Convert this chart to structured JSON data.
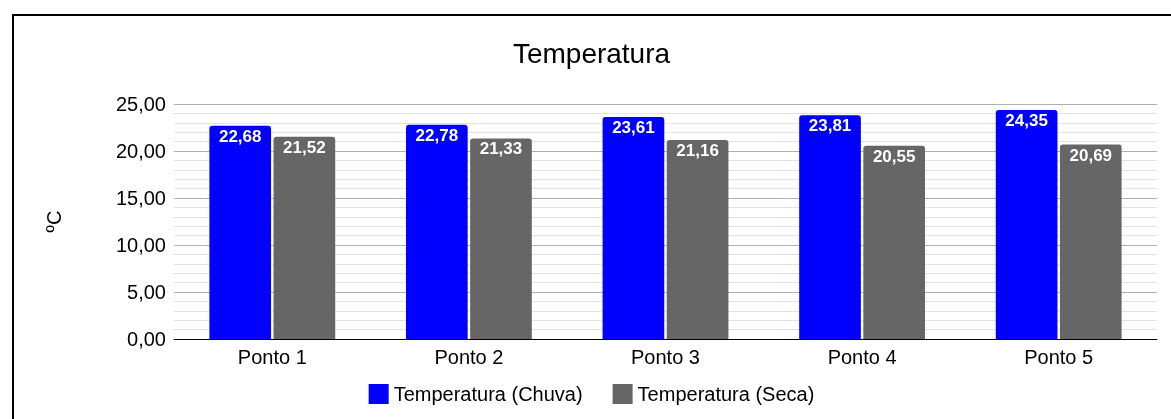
{
  "chart_data": {
    "type": "bar",
    "title": "Temperatura",
    "ylabel": "ºC",
    "categories": [
      "Ponto 1",
      "Ponto 2",
      "Ponto 3",
      "Ponto 4",
      "Ponto 5"
    ],
    "series": [
      {
        "name": "Temperatura (Chuva)",
        "color": "#0000ff",
        "values": [
          22.68,
          22.78,
          23.61,
          23.81,
          24.35
        ],
        "value_labels": [
          "22,68",
          "22,78",
          "23,61",
          "23,81",
          "24,35"
        ]
      },
      {
        "name": "Temperatura (Seca)",
        "color": "#666666",
        "values": [
          21.52,
          21.33,
          21.16,
          20.55,
          20.69
        ],
        "value_labels": [
          "21,52",
          "21,33",
          "21,16",
          "20,55",
          "20,69"
        ]
      }
    ],
    "ylim": [
      0,
      25
    ],
    "yticks": [
      {
        "value": 0,
        "label": "0,00"
      },
      {
        "value": 5,
        "label": "5,00"
      },
      {
        "value": 10,
        "label": "10,00"
      },
      {
        "value": 15,
        "label": "15,00"
      },
      {
        "value": 20,
        "label": "20,00"
      },
      {
        "value": 25,
        "label": "25,00"
      }
    ],
    "grid": true,
    "legend": "bottom"
  }
}
